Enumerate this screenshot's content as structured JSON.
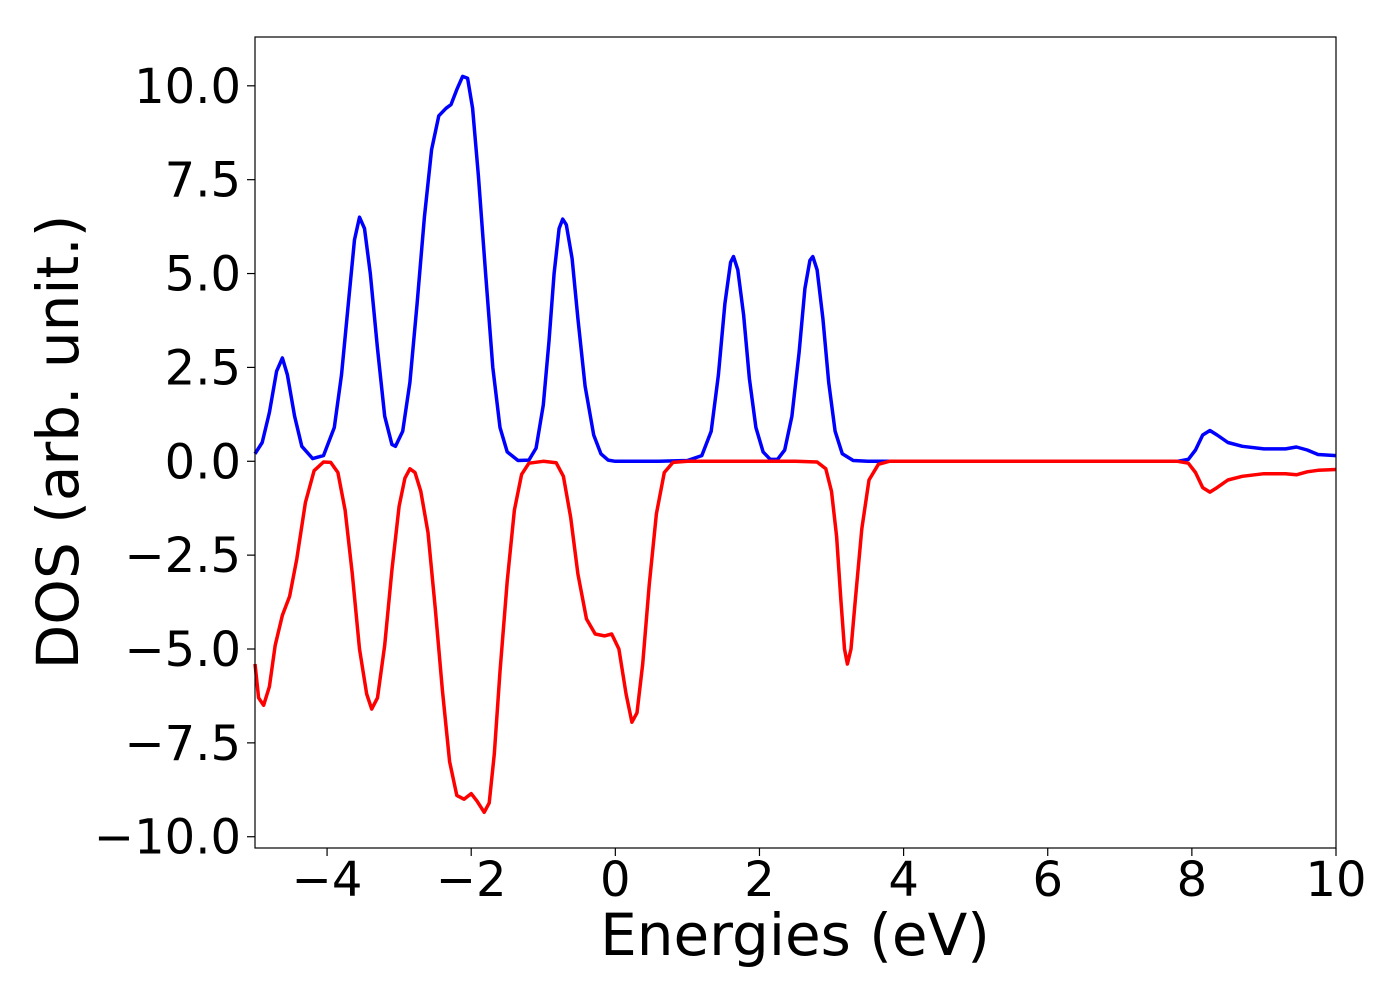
{
  "chart_data": {
    "type": "line",
    "title": "",
    "xlabel": "Energies (eV)",
    "ylabel": "DOS (arb. unit.)",
    "xlim": [
      -5,
      10
    ],
    "ylim": [
      -10.3,
      11.3
    ],
    "grid": false,
    "legend": "none",
    "xticks": [
      -4,
      -2,
      0,
      2,
      4,
      6,
      8,
      10
    ],
    "xtick_labels": [
      "−4",
      "−2",
      "0",
      "2",
      "4",
      "6",
      "8",
      "10"
    ],
    "yticks": [
      10.0,
      7.5,
      5.0,
      2.5,
      0.0,
      -2.5,
      -5.0,
      -7.5,
      -10.0
    ],
    "ytick_labels": [
      "10.0",
      "7.5",
      "5.0",
      "2.5",
      "0.0",
      "−2.5",
      "−5.0",
      "−7.5",
      "−10.0"
    ],
    "series": [
      {
        "color": "#0000ff",
        "points": [
          [
            -5.0,
            0.2
          ],
          [
            -4.9,
            0.5
          ],
          [
            -4.8,
            1.3
          ],
          [
            -4.7,
            2.4
          ],
          [
            -4.62,
            2.75
          ],
          [
            -4.55,
            2.3
          ],
          [
            -4.45,
            1.2
          ],
          [
            -4.35,
            0.4
          ],
          [
            -4.2,
            0.07
          ],
          [
            -4.05,
            0.15
          ],
          [
            -3.9,
            0.9
          ],
          [
            -3.8,
            2.3
          ],
          [
            -3.7,
            4.3
          ],
          [
            -3.62,
            5.9
          ],
          [
            -3.55,
            6.5
          ],
          [
            -3.48,
            6.2
          ],
          [
            -3.4,
            5.0
          ],
          [
            -3.3,
            3.0
          ],
          [
            -3.2,
            1.2
          ],
          [
            -3.1,
            0.45
          ],
          [
            -3.05,
            0.4
          ],
          [
            -2.95,
            0.8
          ],
          [
            -2.85,
            2.1
          ],
          [
            -2.75,
            4.2
          ],
          [
            -2.65,
            6.5
          ],
          [
            -2.55,
            8.3
          ],
          [
            -2.45,
            9.2
          ],
          [
            -2.35,
            9.4
          ],
          [
            -2.28,
            9.5
          ],
          [
            -2.2,
            9.9
          ],
          [
            -2.12,
            10.25
          ],
          [
            -2.05,
            10.2
          ],
          [
            -1.98,
            9.4
          ],
          [
            -1.9,
            7.6
          ],
          [
            -1.8,
            5.0
          ],
          [
            -1.7,
            2.5
          ],
          [
            -1.6,
            0.9
          ],
          [
            -1.5,
            0.25
          ],
          [
            -1.35,
            0.02
          ],
          [
            -1.2,
            0.03
          ],
          [
            -1.1,
            0.35
          ],
          [
            -1.0,
            1.5
          ],
          [
            -0.92,
            3.2
          ],
          [
            -0.85,
            5.0
          ],
          [
            -0.78,
            6.2
          ],
          [
            -0.73,
            6.45
          ],
          [
            -0.68,
            6.3
          ],
          [
            -0.6,
            5.4
          ],
          [
            -0.52,
            3.8
          ],
          [
            -0.42,
            2.0
          ],
          [
            -0.3,
            0.7
          ],
          [
            -0.2,
            0.2
          ],
          [
            -0.1,
            0.03
          ],
          [
            0.0,
            0.0
          ],
          [
            0.6,
            0.0
          ],
          [
            1.0,
            0.02
          ],
          [
            1.2,
            0.15
          ],
          [
            1.33,
            0.8
          ],
          [
            1.43,
            2.3
          ],
          [
            1.52,
            4.2
          ],
          [
            1.6,
            5.3
          ],
          [
            1.64,
            5.45
          ],
          [
            1.7,
            5.1
          ],
          [
            1.78,
            3.9
          ],
          [
            1.86,
            2.2
          ],
          [
            1.95,
            0.9
          ],
          [
            2.05,
            0.25
          ],
          [
            2.15,
            0.05
          ],
          [
            2.25,
            0.05
          ],
          [
            2.35,
            0.3
          ],
          [
            2.45,
            1.2
          ],
          [
            2.55,
            2.9
          ],
          [
            2.63,
            4.6
          ],
          [
            2.7,
            5.35
          ],
          [
            2.74,
            5.45
          ],
          [
            2.8,
            5.1
          ],
          [
            2.88,
            3.8
          ],
          [
            2.96,
            2.1
          ],
          [
            3.05,
            0.8
          ],
          [
            3.15,
            0.2
          ],
          [
            3.3,
            0.02
          ],
          [
            3.5,
            0.0
          ],
          [
            7.8,
            0.0
          ],
          [
            7.95,
            0.05
          ],
          [
            8.05,
            0.3
          ],
          [
            8.15,
            0.7
          ],
          [
            8.25,
            0.82
          ],
          [
            8.35,
            0.7
          ],
          [
            8.5,
            0.5
          ],
          [
            8.7,
            0.4
          ],
          [
            9.0,
            0.33
          ],
          [
            9.3,
            0.33
          ],
          [
            9.45,
            0.38
          ],
          [
            9.6,
            0.3
          ],
          [
            9.75,
            0.18
          ],
          [
            10.0,
            0.15
          ]
        ]
      },
      {
        "color": "#ff0000",
        "points": [
          [
            -5.0,
            -5.4
          ],
          [
            -4.95,
            -6.3
          ],
          [
            -4.88,
            -6.5
          ],
          [
            -4.8,
            -6.0
          ],
          [
            -4.72,
            -4.9
          ],
          [
            -4.62,
            -4.1
          ],
          [
            -4.52,
            -3.6
          ],
          [
            -4.42,
            -2.6
          ],
          [
            -4.3,
            -1.1
          ],
          [
            -4.18,
            -0.25
          ],
          [
            -4.05,
            -0.02
          ],
          [
            -3.95,
            -0.03
          ],
          [
            -3.85,
            -0.3
          ],
          [
            -3.75,
            -1.3
          ],
          [
            -3.65,
            -3.0
          ],
          [
            -3.55,
            -5.0
          ],
          [
            -3.45,
            -6.2
          ],
          [
            -3.38,
            -6.6
          ],
          [
            -3.3,
            -6.3
          ],
          [
            -3.2,
            -4.9
          ],
          [
            -3.1,
            -2.9
          ],
          [
            -3.0,
            -1.2
          ],
          [
            -2.92,
            -0.45
          ],
          [
            -2.85,
            -0.2
          ],
          [
            -2.78,
            -0.3
          ],
          [
            -2.7,
            -0.8
          ],
          [
            -2.6,
            -1.9
          ],
          [
            -2.5,
            -3.9
          ],
          [
            -2.4,
            -6.1
          ],
          [
            -2.3,
            -8.0
          ],
          [
            -2.2,
            -8.9
          ],
          [
            -2.1,
            -9.0
          ],
          [
            -2.0,
            -8.85
          ],
          [
            -1.92,
            -9.05
          ],
          [
            -1.82,
            -9.35
          ],
          [
            -1.75,
            -9.1
          ],
          [
            -1.68,
            -7.8
          ],
          [
            -1.6,
            -5.6
          ],
          [
            -1.5,
            -3.2
          ],
          [
            -1.4,
            -1.3
          ],
          [
            -1.3,
            -0.35
          ],
          [
            -1.2,
            -0.05
          ],
          [
            -1.0,
            0.0
          ],
          [
            -0.82,
            -0.04
          ],
          [
            -0.72,
            -0.4
          ],
          [
            -0.62,
            -1.5
          ],
          [
            -0.52,
            -3.0
          ],
          [
            -0.4,
            -4.2
          ],
          [
            -0.28,
            -4.6
          ],
          [
            -0.15,
            -4.65
          ],
          [
            -0.05,
            -4.6
          ],
          [
            0.05,
            -5.0
          ],
          [
            0.15,
            -6.2
          ],
          [
            0.23,
            -6.95
          ],
          [
            0.3,
            -6.7
          ],
          [
            0.38,
            -5.4
          ],
          [
            0.47,
            -3.3
          ],
          [
            0.57,
            -1.4
          ],
          [
            0.68,
            -0.3
          ],
          [
            0.8,
            -0.03
          ],
          [
            1.0,
            0.0
          ],
          [
            2.5,
            0.0
          ],
          [
            2.8,
            -0.02
          ],
          [
            2.92,
            -0.2
          ],
          [
            3.0,
            -0.8
          ],
          [
            3.07,
            -2.0
          ],
          [
            3.13,
            -3.7
          ],
          [
            3.18,
            -5.0
          ],
          [
            3.22,
            -5.4
          ],
          [
            3.27,
            -5.0
          ],
          [
            3.33,
            -3.7
          ],
          [
            3.42,
            -1.8
          ],
          [
            3.52,
            -0.5
          ],
          [
            3.65,
            -0.08
          ],
          [
            3.8,
            0.0
          ],
          [
            7.8,
            0.0
          ],
          [
            7.95,
            -0.05
          ],
          [
            8.05,
            -0.3
          ],
          [
            8.15,
            -0.7
          ],
          [
            8.25,
            -0.82
          ],
          [
            8.35,
            -0.7
          ],
          [
            8.5,
            -0.5
          ],
          [
            8.7,
            -0.4
          ],
          [
            9.0,
            -0.33
          ],
          [
            9.3,
            -0.33
          ],
          [
            9.45,
            -0.36
          ],
          [
            9.6,
            -0.28
          ],
          [
            9.75,
            -0.24
          ],
          [
            10.0,
            -0.22
          ]
        ]
      }
    ]
  }
}
